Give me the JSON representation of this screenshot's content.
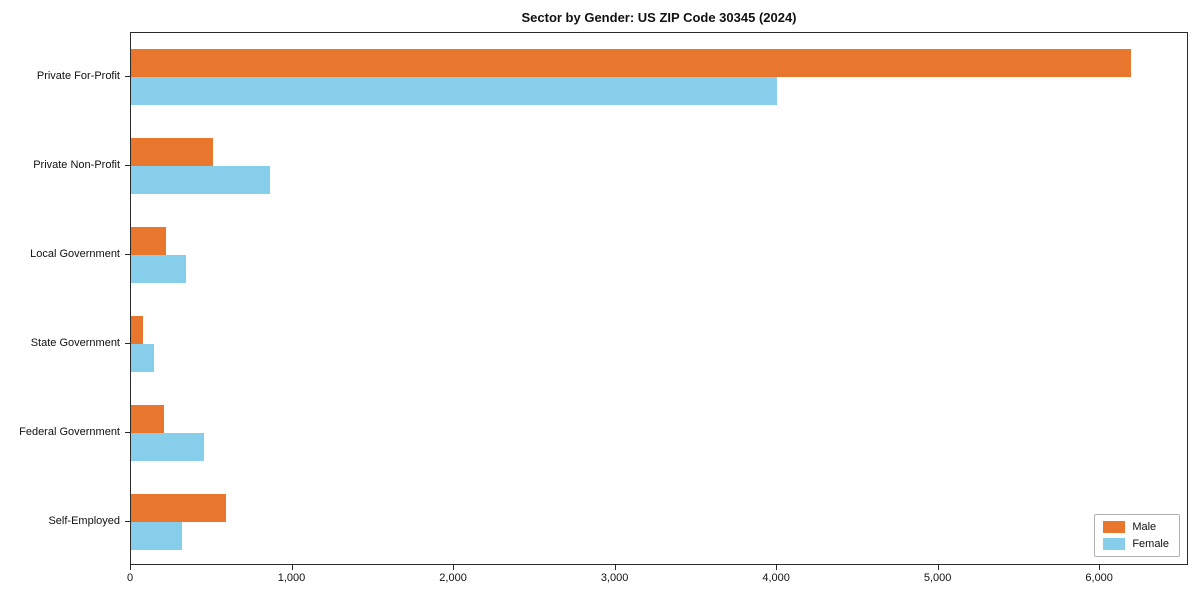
{
  "title": "Sector by Gender: US ZIP Code 30345 (2024)",
  "chart_data": {
    "type": "bar",
    "orientation": "horizontal",
    "title": "Sector by Gender: US ZIP Code 30345 (2024)",
    "categories": [
      "Private For-Profit",
      "Private Non-Profit",
      "Local Government",
      "State Government",
      "Federal Government",
      "Self-Employed"
    ],
    "series": [
      {
        "name": "Male",
        "color": "#e8762c",
        "values": [
          6200,
          510,
          220,
          75,
          205,
          590
        ]
      },
      {
        "name": "Female",
        "color": "#87ceeb",
        "values": [
          4010,
          860,
          340,
          140,
          450,
          315
        ]
      }
    ],
    "xlabel": "",
    "ylabel": "",
    "xlim": [
      0,
      6550
    ],
    "xticks": [
      0,
      1000,
      2000,
      3000,
      4000,
      5000,
      6000
    ],
    "xtick_labels": [
      "0",
      "1,000",
      "2,000",
      "3,000",
      "4,000",
      "5,000",
      "6,000"
    ],
    "grid": false,
    "legend_position": "lower right",
    "legend_entries": [
      "Male",
      "Female"
    ]
  },
  "legend": {
    "male_label": "Male",
    "female_label": "Female"
  }
}
